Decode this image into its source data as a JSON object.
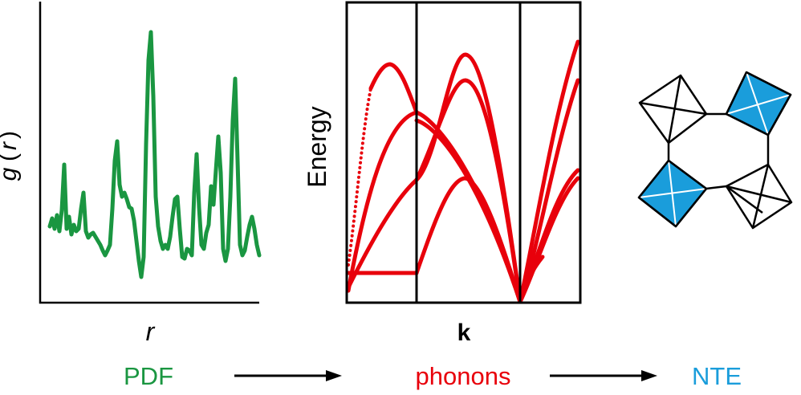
{
  "pdf_panel": {
    "ylabel_g": "g",
    "ylabel_open": "(",
    "ylabel_r": "r",
    "ylabel_close": ")",
    "xlabel": "r",
    "curve_color": "#1a9641"
  },
  "phonon_panel": {
    "ylabel": "Energy",
    "xlabel": "k",
    "band_color": "#e8000b"
  },
  "framework": {
    "filled_color": "#1a9ddb",
    "edge_color": "#000000"
  },
  "flow": {
    "step1": "PDF",
    "step1_color": "#1a9641",
    "step2": "phonons",
    "step2_color": "#e8000b",
    "step3": "NTE",
    "step3_color": "#1a9ddb"
  }
}
